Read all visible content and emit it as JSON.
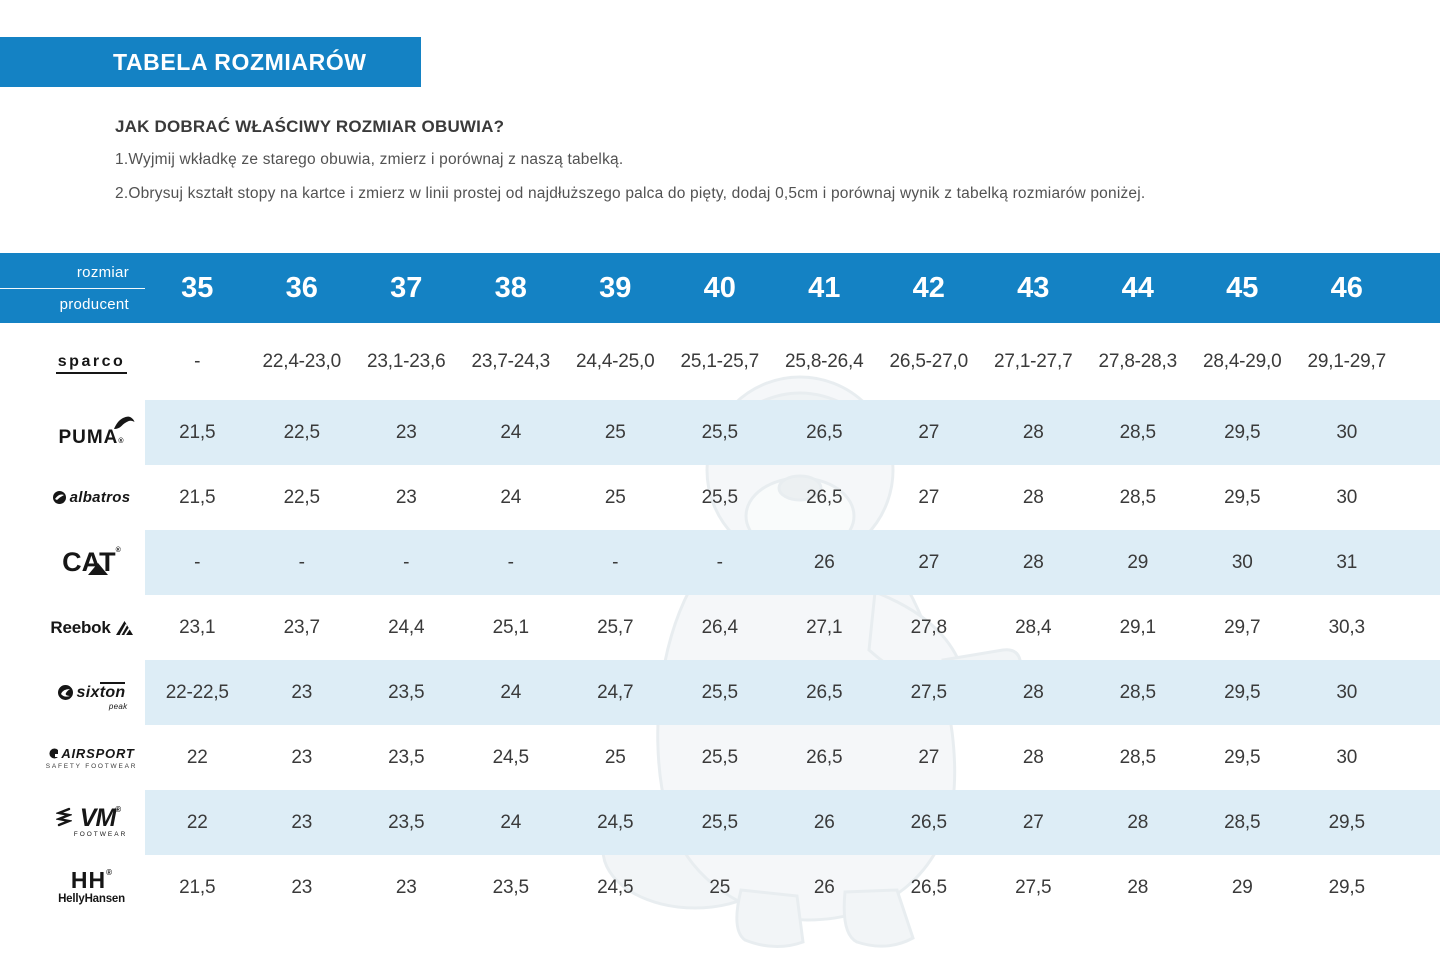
{
  "title_bar": {
    "title": "TABELA ROZMIARÓW"
  },
  "intro": {
    "heading": "JAK DOBRAĆ WŁAŚCIWY ROZMIAR OBUWIA?",
    "step1": "1.Wyjmij wkładkę ze starego obuwia, zmierz i porównaj z naszą tabelką.",
    "step2": "2.Obrysuj kształt stopy na kartce i zmierz w linii prostej od najdłuższego palca do pięty, dodaj 0,5cm i porównaj wynik z tabelką rozmiarów poniżej."
  },
  "colors": {
    "accent_blue": "#1482c4",
    "stripe_blue": "#ddedf6",
    "header_text": "#ffffff",
    "body_text": "#3a3a3a",
    "logo_black": "#161616"
  },
  "chart_data": {
    "type": "table",
    "title": "TABELA ROZMIARÓW",
    "corner": {
      "top": "rozmiar",
      "bottom": "producent"
    },
    "columns": [
      "35",
      "36",
      "37",
      "38",
      "39",
      "40",
      "41",
      "42",
      "43",
      "44",
      "45",
      "46"
    ],
    "rows": [
      {
        "brand": "Sparco",
        "logo": {
          "text": "sparco"
        },
        "values": [
          "-",
          "22,4-23,0",
          "23,1-23,6",
          "23,7-24,3",
          "24,4-25,0",
          "25,1-25,7",
          "25,8-26,4",
          "26,5-27,0",
          "27,1-27,7",
          "27,8-28,3",
          "28,4-29,0",
          "29,1-29,7"
        ]
      },
      {
        "brand": "Puma",
        "logo": {
          "text": "PUMA",
          "reg": "®"
        },
        "values": [
          "21,5",
          "22,5",
          "23",
          "24",
          "25",
          "25,5",
          "26,5",
          "27",
          "28",
          "28,5",
          "29,5",
          "30"
        ]
      },
      {
        "brand": "Albatros",
        "logo": {
          "text": "albatros"
        },
        "values": [
          "21,5",
          "22,5",
          "23",
          "24",
          "25",
          "25,5",
          "26,5",
          "27",
          "28",
          "28,5",
          "29,5",
          "30"
        ]
      },
      {
        "brand": "CAT",
        "logo": {
          "text": "CAT",
          "reg": "®"
        },
        "values": [
          "-",
          "-",
          "-",
          "-",
          "-",
          "-",
          "26",
          "27",
          "28",
          "29",
          "30",
          "31"
        ]
      },
      {
        "brand": "Reebok",
        "logo": {
          "text": "Reebok"
        },
        "values": [
          "23,1",
          "23,7",
          "24,4",
          "25,1",
          "25,7",
          "26,4",
          "27,1",
          "27,8",
          "28,4",
          "29,1",
          "29,7",
          "30,3"
        ]
      },
      {
        "brand": "Sixton Peak",
        "logo": {
          "text_a": "six",
          "text_b": "ton",
          "sub": "peak"
        },
        "values": [
          "22-22,5",
          "23",
          "23,5",
          "24",
          "24,7",
          "25,5",
          "26,5",
          "27,5",
          "28",
          "28,5",
          "29,5",
          "30"
        ]
      },
      {
        "brand": "Airsport",
        "logo": {
          "text": "AIRSPORT",
          "sub": "SAFETY FOOTWEAR"
        },
        "values": [
          "22",
          "23",
          "23,5",
          "24,5",
          "25",
          "25,5",
          "26,5",
          "27",
          "28",
          "28,5",
          "29,5",
          "30"
        ]
      },
      {
        "brand": "VM Footwear",
        "logo": {
          "text": "VM",
          "reg": "®",
          "sub": "FOOTWEAR"
        },
        "values": [
          "22",
          "23",
          "23,5",
          "24",
          "24,5",
          "25,5",
          "26",
          "26,5",
          "27",
          "28",
          "28,5",
          "29,5"
        ]
      },
      {
        "brand": "Helly Hansen",
        "logo": {
          "text": "HH",
          "reg": "®",
          "sub": "HellyHansen"
        },
        "values": [
          "21,5",
          "23",
          "23",
          "23,5",
          "24,5",
          "25",
          "26",
          "26,5",
          "27,5",
          "28",
          "29",
          "29,5"
        ]
      }
    ]
  }
}
